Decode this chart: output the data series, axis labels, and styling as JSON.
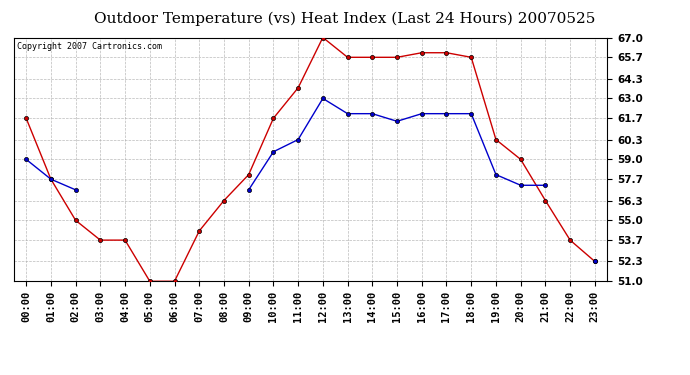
{
  "title": "Outdoor Temperature (vs) Heat Index (Last 24 Hours) 20070525",
  "copyright_text": "Copyright 2007 Cartronics.com",
  "hours": [
    "00:00",
    "01:00",
    "02:00",
    "03:00",
    "04:00",
    "05:00",
    "06:00",
    "07:00",
    "08:00",
    "09:00",
    "10:00",
    "11:00",
    "12:00",
    "13:00",
    "14:00",
    "15:00",
    "16:00",
    "17:00",
    "18:00",
    "19:00",
    "20:00",
    "21:00",
    "22:00",
    "23:00"
  ],
  "red_data": [
    61.7,
    57.7,
    55.0,
    53.7,
    53.7,
    51.0,
    51.0,
    54.3,
    56.3,
    58.0,
    61.7,
    63.7,
    67.0,
    65.7,
    65.7,
    65.7,
    66.0,
    66.0,
    65.7,
    60.3,
    59.0,
    56.3,
    53.7,
    52.3
  ],
  "blue_data": [
    59.0,
    57.7,
    57.0,
    null,
    null,
    null,
    null,
    null,
    null,
    57.0,
    59.5,
    60.3,
    63.0,
    62.0,
    62.0,
    61.5,
    62.0,
    62.0,
    62.0,
    58.0,
    57.3,
    57.3,
    null,
    52.3
  ],
  "ylim": [
    51.0,
    67.0
  ],
  "yticks": [
    51.0,
    52.3,
    53.7,
    55.0,
    56.3,
    57.7,
    59.0,
    60.3,
    61.7,
    63.0,
    64.3,
    65.7,
    67.0
  ],
  "red_color": "#cc0000",
  "blue_color": "#0000cc",
  "background_color": "#ffffff",
  "plot_bg_color": "#ffffff",
  "grid_color": "#aaaaaa",
  "title_fontsize": 11,
  "tick_fontsize": 7.5,
  "copyright_fontsize": 6
}
